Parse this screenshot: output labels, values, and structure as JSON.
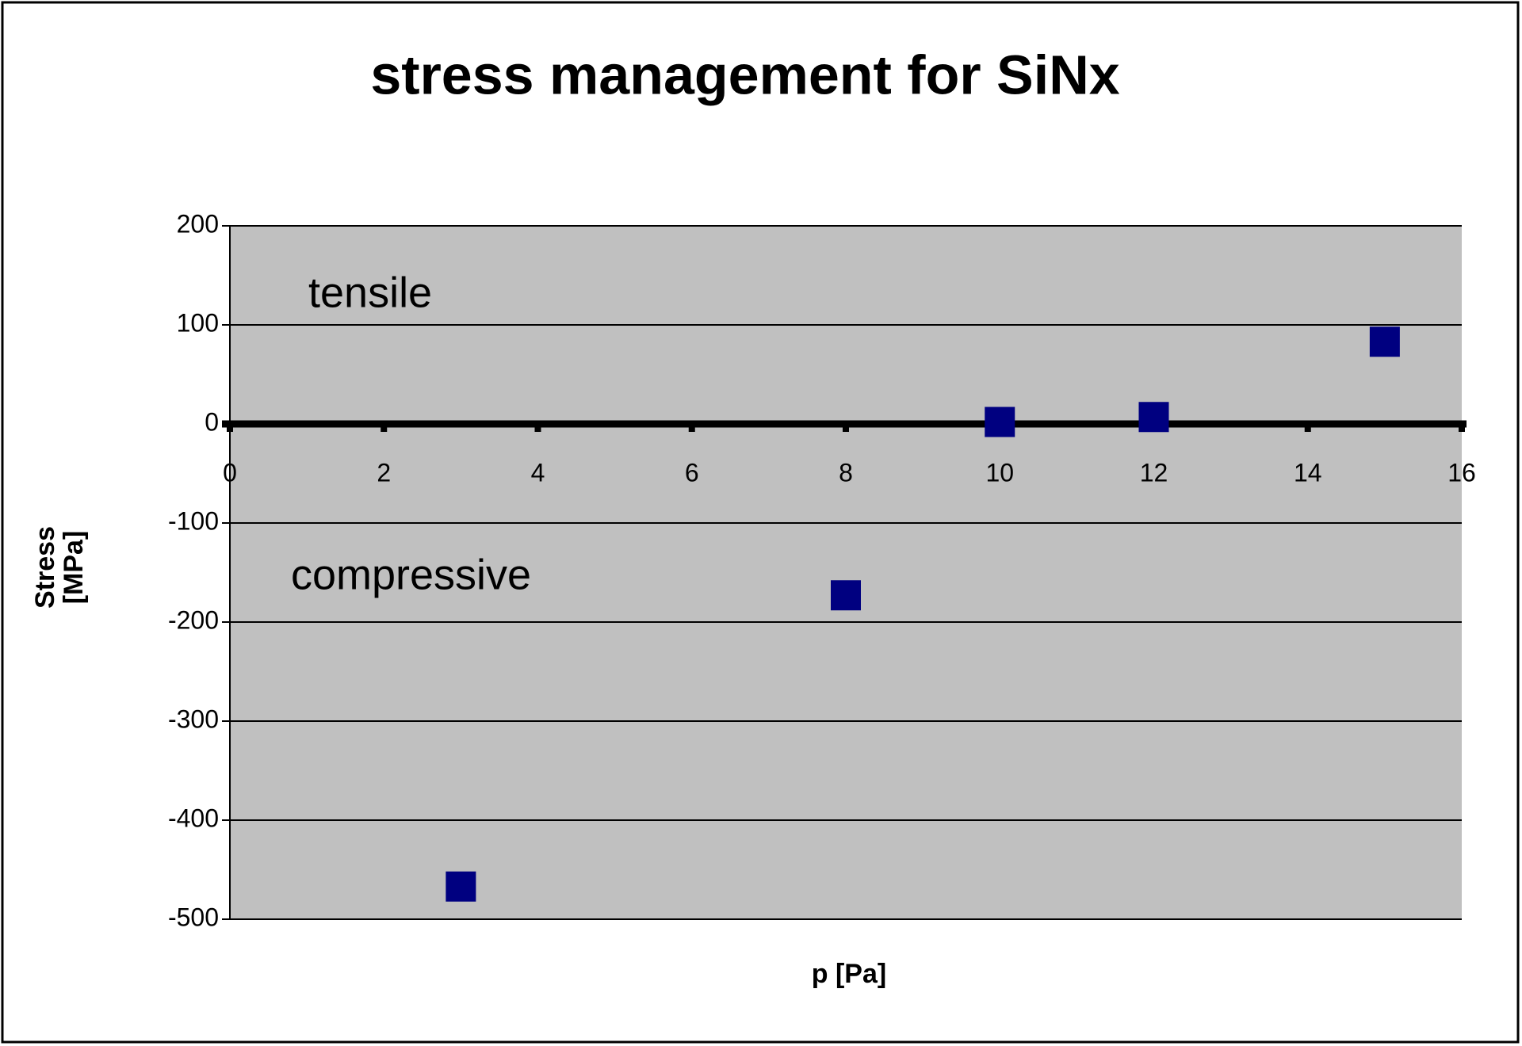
{
  "chart_data": {
    "type": "scatter",
    "title": "stress management for SiNx",
    "x_label": "p [Pa]",
    "y_label": "Stress [MPa]",
    "annotations": [
      "tensile",
      "compressive"
    ],
    "series": [
      {
        "name": "SiNx",
        "color": "#000080",
        "x": [
          3,
          8,
          10,
          12,
          15
        ],
        "values": [
          -467,
          -173,
          2,
          7,
          83
        ]
      }
    ],
    "xlim": [
      0,
      16
    ],
    "xticks": [
      0,
      2,
      4,
      6,
      8,
      10,
      12,
      14,
      16
    ],
    "ylim": [
      -500,
      200
    ],
    "yticks": [
      200,
      100,
      0,
      -100,
      -200,
      -300,
      -400,
      -500
    ],
    "grid": true
  }
}
